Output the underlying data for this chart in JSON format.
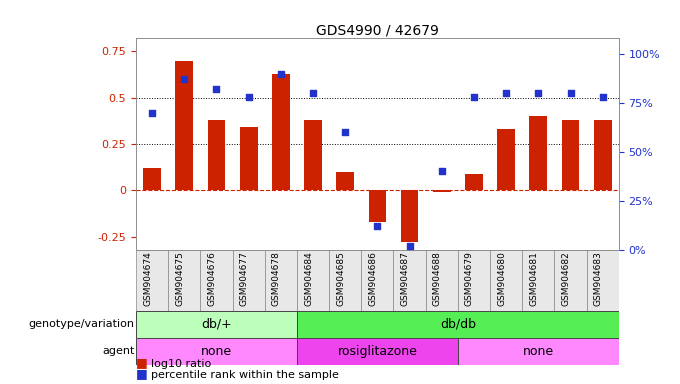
{
  "title": "GDS4990 / 42679",
  "samples": [
    "GSM904674",
    "GSM904675",
    "GSM904676",
    "GSM904677",
    "GSM904678",
    "GSM904684",
    "GSM904685",
    "GSM904686",
    "GSM904687",
    "GSM904688",
    "GSM904679",
    "GSM904680",
    "GSM904681",
    "GSM904682",
    "GSM904683"
  ],
  "log10_ratio": [
    0.12,
    0.7,
    0.38,
    0.34,
    0.63,
    0.38,
    0.1,
    -0.17,
    -0.28,
    -0.01,
    0.09,
    0.33,
    0.4,
    0.38,
    0.38
  ],
  "percentile": [
    70,
    87,
    82,
    78,
    90,
    80,
    60,
    12,
    2,
    40,
    78,
    80,
    80,
    80,
    78
  ],
  "bar_color": "#CC2200",
  "dot_color": "#2233CC",
  "ylim_left": [
    -0.32,
    0.82
  ],
  "ylim_right": [
    0,
    108
  ],
  "yticks_left": [
    -0.25,
    0.0,
    0.25,
    0.5,
    0.75
  ],
  "ytick_labels_left": [
    "-0.25",
    "0",
    "0.25",
    "0.5",
    "0.75"
  ],
  "yticks_right": [
    0,
    25,
    50,
    75,
    100
  ],
  "ytick_labels_right": [
    "0%",
    "25%",
    "50%",
    "75%",
    "100%"
  ],
  "dotted_lines": [
    0.25,
    0.5
  ],
  "genotype_groups": [
    {
      "label": "db/+",
      "start": 0,
      "end": 5,
      "color": "#BBFFBB"
    },
    {
      "label": "db/db",
      "start": 5,
      "end": 15,
      "color": "#55EE55"
    }
  ],
  "agent_groups": [
    {
      "label": "none",
      "start": 0,
      "end": 5,
      "color": "#FF88FF"
    },
    {
      "label": "rosiglitazone",
      "start": 5,
      "end": 10,
      "color": "#EE44EE"
    },
    {
      "label": "none",
      "start": 10,
      "end": 15,
      "color": "#FF88FF"
    }
  ],
  "genotype_label": "genotype/variation",
  "agent_label": "agent",
  "legend": [
    {
      "label": "log10 ratio",
      "color": "#CC2200"
    },
    {
      "label": "percentile rank within the sample",
      "color": "#2233CC"
    }
  ]
}
